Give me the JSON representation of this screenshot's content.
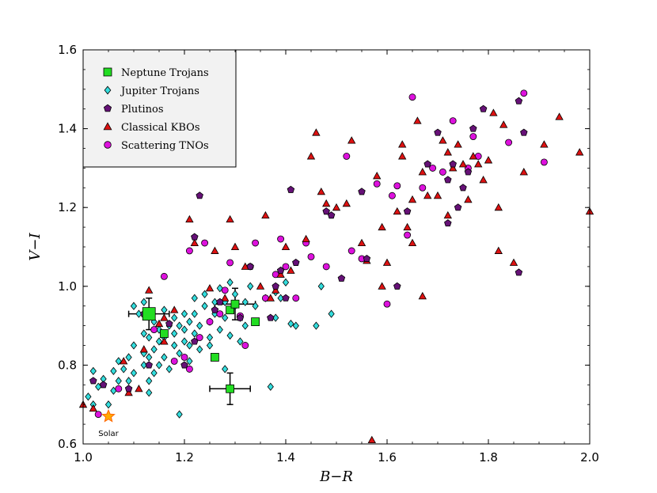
{
  "chart_data": {
    "type": "scatter",
    "xlabel": "B−R",
    "ylabel": "V−I",
    "xlim": [
      1.0,
      2.0
    ],
    "ylim": [
      0.6,
      1.6
    ],
    "x_ticks": [
      "1.0",
      "1.2",
      "1.4",
      "1.6",
      "1.8",
      "2.0"
    ],
    "y_ticks": [
      "0.6",
      "0.8",
      "1.0",
      "1.2",
      "1.4",
      "1.6"
    ],
    "legend_position": "top-left",
    "colors": {
      "neptune": "#22dd22",
      "jupiter": "#33dddd",
      "plutinos": "#661177",
      "classical": "#dd1111",
      "scattering": "#dd11dd",
      "solar_fill": "#ffaa00",
      "solar_edge": "#ff6600",
      "legend_bg": "#f2f2f2"
    },
    "series": [
      {
        "name": "Neptune Trojans",
        "marker": "square",
        "points": [
          [
            1.13,
            0.93
          ],
          [
            1.16,
            0.88
          ],
          [
            1.26,
            0.82
          ],
          [
            1.29,
            0.94
          ],
          [
            1.3,
            0.955
          ],
          [
            1.34,
            0.91
          ],
          [
            1.29,
            0.74
          ]
        ]
      },
      {
        "name": "Jupiter Trojans",
        "marker": "diamond",
        "points": [
          [
            1.01,
            0.72
          ],
          [
            1.02,
            0.785
          ],
          [
            1.02,
            0.7
          ],
          [
            1.03,
            0.745
          ],
          [
            1.04,
            0.765
          ],
          [
            1.05,
            0.7
          ],
          [
            1.06,
            0.735
          ],
          [
            1.06,
            0.785
          ],
          [
            1.07,
            0.76
          ],
          [
            1.07,
            0.81
          ],
          [
            1.08,
            0.79
          ],
          [
            1.09,
            0.76
          ],
          [
            1.09,
            0.82
          ],
          [
            1.1,
            0.78
          ],
          [
            1.1,
            0.85
          ],
          [
            1.1,
            0.95
          ],
          [
            1.11,
            0.93
          ],
          [
            1.12,
            0.8
          ],
          [
            1.12,
            0.83
          ],
          [
            1.12,
            0.88
          ],
          [
            1.12,
            0.96
          ],
          [
            1.13,
            0.73
          ],
          [
            1.13,
            0.76
          ],
          [
            1.13,
            0.82
          ],
          [
            1.13,
            0.87
          ],
          [
            1.14,
            0.78
          ],
          [
            1.14,
            0.84
          ],
          [
            1.14,
            0.91
          ],
          [
            1.15,
            0.8
          ],
          [
            1.15,
            0.86
          ],
          [
            1.15,
            0.89
          ],
          [
            1.16,
            0.82
          ],
          [
            1.16,
            0.87
          ],
          [
            1.16,
            0.94
          ],
          [
            1.17,
            0.79
          ],
          [
            1.17,
            0.9
          ],
          [
            1.18,
            0.85
          ],
          [
            1.18,
            0.88
          ],
          [
            1.18,
            0.92
          ],
          [
            1.19,
            0.83
          ],
          [
            1.19,
            0.9
          ],
          [
            1.19,
            0.675
          ],
          [
            1.2,
            0.86
          ],
          [
            1.2,
            0.89
          ],
          [
            1.2,
            0.93
          ],
          [
            1.21,
            0.81
          ],
          [
            1.21,
            0.85
          ],
          [
            1.21,
            0.91
          ],
          [
            1.22,
            0.88
          ],
          [
            1.22,
            0.93
          ],
          [
            1.22,
            0.97
          ],
          [
            1.23,
            0.84
          ],
          [
            1.23,
            0.9
          ],
          [
            1.24,
            0.95
          ],
          [
            1.24,
            0.98
          ],
          [
            1.25,
            0.91
          ],
          [
            1.25,
            0.87
          ],
          [
            1.26,
            0.93
          ],
          [
            1.26,
            0.96
          ],
          [
            1.27,
            0.89
          ],
          [
            1.27,
            0.995
          ],
          [
            1.28,
            0.92
          ],
          [
            1.28,
            0.96
          ],
          [
            1.29,
            0.875
          ],
          [
            1.29,
            1.01
          ],
          [
            1.3,
            0.95
          ],
          [
            1.3,
            0.98
          ],
          [
            1.31,
            0.86
          ],
          [
            1.31,
            0.92
          ],
          [
            1.32,
            0.9
          ],
          [
            1.32,
            0.96
          ],
          [
            1.33,
            1.0
          ],
          [
            1.34,
            0.95
          ],
          [
            1.36,
            0.97
          ],
          [
            1.37,
            0.745
          ],
          [
            1.38,
            0.92
          ],
          [
            1.38,
            0.985
          ],
          [
            1.39,
            0.97
          ],
          [
            1.4,
            1.01
          ],
          [
            1.41,
            0.905
          ],
          [
            1.42,
            0.9
          ],
          [
            1.46,
            0.9
          ],
          [
            1.47,
            1.0
          ],
          [
            1.49,
            0.93
          ],
          [
            1.25,
            0.85
          ],
          [
            1.28,
            0.79
          ]
        ]
      },
      {
        "name": "Plutinos",
        "marker": "pentagon",
        "points": [
          [
            1.02,
            0.76
          ],
          [
            1.04,
            0.75
          ],
          [
            1.09,
            0.74
          ],
          [
            1.12,
            0.93
          ],
          [
            1.13,
            0.8
          ],
          [
            1.17,
            0.905
          ],
          [
            1.2,
            0.8
          ],
          [
            1.22,
            0.86
          ],
          [
            1.22,
            1.125
          ],
          [
            1.23,
            1.23
          ],
          [
            1.26,
            0.94
          ],
          [
            1.27,
            0.96
          ],
          [
            1.31,
            0.92
          ],
          [
            1.33,
            1.05
          ],
          [
            1.37,
            0.92
          ],
          [
            1.38,
            1.0
          ],
          [
            1.39,
            1.04
          ],
          [
            1.4,
            0.97
          ],
          [
            1.41,
            1.245
          ],
          [
            1.42,
            1.06
          ],
          [
            1.48,
            1.19
          ],
          [
            1.49,
            1.18
          ],
          [
            1.51,
            1.02
          ],
          [
            1.55,
            1.24
          ],
          [
            1.56,
            1.07
          ],
          [
            1.62,
            1.0
          ],
          [
            1.64,
            1.19
          ],
          [
            1.68,
            1.31
          ],
          [
            1.7,
            1.39
          ],
          [
            1.72,
            1.27
          ],
          [
            1.72,
            1.16
          ],
          [
            1.73,
            1.31
          ],
          [
            1.75,
            1.25
          ],
          [
            1.76,
            1.29
          ],
          [
            1.77,
            1.4
          ],
          [
            1.79,
            1.45
          ],
          [
            1.86,
            1.47
          ],
          [
            1.87,
            1.39
          ],
          [
            1.86,
            1.035
          ],
          [
            1.74,
            1.2
          ]
        ]
      },
      {
        "name": "Classical KBOs",
        "marker": "triangle",
        "points": [
          [
            1.0,
            0.7
          ],
          [
            1.02,
            0.69
          ],
          [
            1.08,
            0.81
          ],
          [
            1.09,
            0.73
          ],
          [
            1.11,
            0.74
          ],
          [
            1.12,
            0.84
          ],
          [
            1.13,
            0.99
          ],
          [
            1.15,
            0.905
          ],
          [
            1.16,
            0.86
          ],
          [
            1.18,
            0.94
          ],
          [
            1.21,
            1.17
          ],
          [
            1.22,
            1.11
          ],
          [
            1.25,
            0.995
          ],
          [
            1.26,
            1.09
          ],
          [
            1.28,
            0.97
          ],
          [
            1.29,
            1.17
          ],
          [
            1.3,
            1.1
          ],
          [
            1.32,
            1.05
          ],
          [
            1.35,
            1.0
          ],
          [
            1.36,
            1.18
          ],
          [
            1.37,
            0.97
          ],
          [
            1.38,
            0.99
          ],
          [
            1.39,
            1.03
          ],
          [
            1.4,
            1.1
          ],
          [
            1.41,
            1.04
          ],
          [
            1.44,
            1.12
          ],
          [
            1.45,
            1.33
          ],
          [
            1.46,
            1.39
          ],
          [
            1.47,
            1.24
          ],
          [
            1.48,
            1.21
          ],
          [
            1.5,
            1.2
          ],
          [
            1.52,
            1.21
          ],
          [
            1.53,
            1.37
          ],
          [
            1.55,
            1.11
          ],
          [
            1.56,
            1.065
          ],
          [
            1.57,
            0.61
          ],
          [
            1.58,
            1.28
          ],
          [
            1.59,
            1.0
          ],
          [
            1.59,
            1.15
          ],
          [
            1.6,
            1.06
          ],
          [
            1.62,
            1.19
          ],
          [
            1.63,
            1.36
          ],
          [
            1.63,
            1.33
          ],
          [
            1.64,
            1.15
          ],
          [
            1.65,
            1.22
          ],
          [
            1.65,
            1.11
          ],
          [
            1.66,
            1.42
          ],
          [
            1.67,
            1.29
          ],
          [
            1.67,
            0.975
          ],
          [
            1.68,
            1.23
          ],
          [
            1.7,
            1.23
          ],
          [
            1.71,
            1.37
          ],
          [
            1.72,
            1.18
          ],
          [
            1.72,
            1.34
          ],
          [
            1.73,
            1.3
          ],
          [
            1.74,
            1.36
          ],
          [
            1.75,
            1.31
          ],
          [
            1.76,
            1.22
          ],
          [
            1.77,
            1.33
          ],
          [
            1.78,
            1.31
          ],
          [
            1.79,
            1.27
          ],
          [
            1.8,
            1.32
          ],
          [
            1.81,
            1.44
          ],
          [
            1.82,
            1.2
          ],
          [
            1.82,
            1.09
          ],
          [
            1.83,
            1.41
          ],
          [
            1.85,
            1.06
          ],
          [
            1.87,
            1.29
          ],
          [
            1.91,
            1.36
          ],
          [
            1.94,
            1.43
          ],
          [
            1.98,
            1.34
          ],
          [
            2.0,
            1.19
          ],
          [
            1.16,
            0.92
          ]
        ]
      },
      {
        "name": "Scattering TNOs",
        "marker": "circle",
        "points": [
          [
            1.03,
            0.675
          ],
          [
            1.07,
            0.74
          ],
          [
            1.14,
            0.89
          ],
          [
            1.16,
            1.025
          ],
          [
            1.18,
            0.81
          ],
          [
            1.2,
            0.82
          ],
          [
            1.21,
            0.79
          ],
          [
            1.21,
            1.09
          ],
          [
            1.23,
            0.87
          ],
          [
            1.24,
            1.11
          ],
          [
            1.25,
            0.91
          ],
          [
            1.27,
            0.93
          ],
          [
            1.28,
            0.99
          ],
          [
            1.29,
            1.06
          ],
          [
            1.31,
            0.925
          ],
          [
            1.32,
            0.85
          ],
          [
            1.33,
            1.05
          ],
          [
            1.34,
            1.11
          ],
          [
            1.36,
            0.97
          ],
          [
            1.38,
            1.03
          ],
          [
            1.39,
            1.12
          ],
          [
            1.4,
            1.05
          ],
          [
            1.42,
            0.97
          ],
          [
            1.44,
            1.11
          ],
          [
            1.45,
            1.075
          ],
          [
            1.48,
            1.05
          ],
          [
            1.52,
            1.33
          ],
          [
            1.53,
            1.09
          ],
          [
            1.55,
            1.07
          ],
          [
            1.58,
            1.26
          ],
          [
            1.6,
            0.955
          ],
          [
            1.61,
            1.23
          ],
          [
            1.62,
            1.255
          ],
          [
            1.64,
            1.13
          ],
          [
            1.65,
            1.48
          ],
          [
            1.67,
            1.25
          ],
          [
            1.69,
            1.3
          ],
          [
            1.71,
            1.29
          ],
          [
            1.73,
            1.42
          ],
          [
            1.76,
            1.3
          ],
          [
            1.78,
            1.33
          ],
          [
            1.84,
            1.365
          ],
          [
            1.87,
            1.49
          ],
          [
            1.91,
            1.315
          ],
          [
            1.77,
            1.38
          ]
        ]
      }
    ],
    "error_bars": [
      {
        "x": 1.13,
        "y": 0.93,
        "xerr": 0.04,
        "yerr": 0.04
      },
      {
        "x": 1.3,
        "y": 0.955,
        "xerr": 0.04,
        "yerr": 0.04
      },
      {
        "x": 1.29,
        "y": 0.74,
        "xerr": 0.04,
        "yerr": 0.04
      }
    ],
    "large_markers": [
      [
        1.13,
        0.93
      ]
    ],
    "solar": {
      "label": "Solar",
      "x": 1.05,
      "y": 0.67
    }
  }
}
